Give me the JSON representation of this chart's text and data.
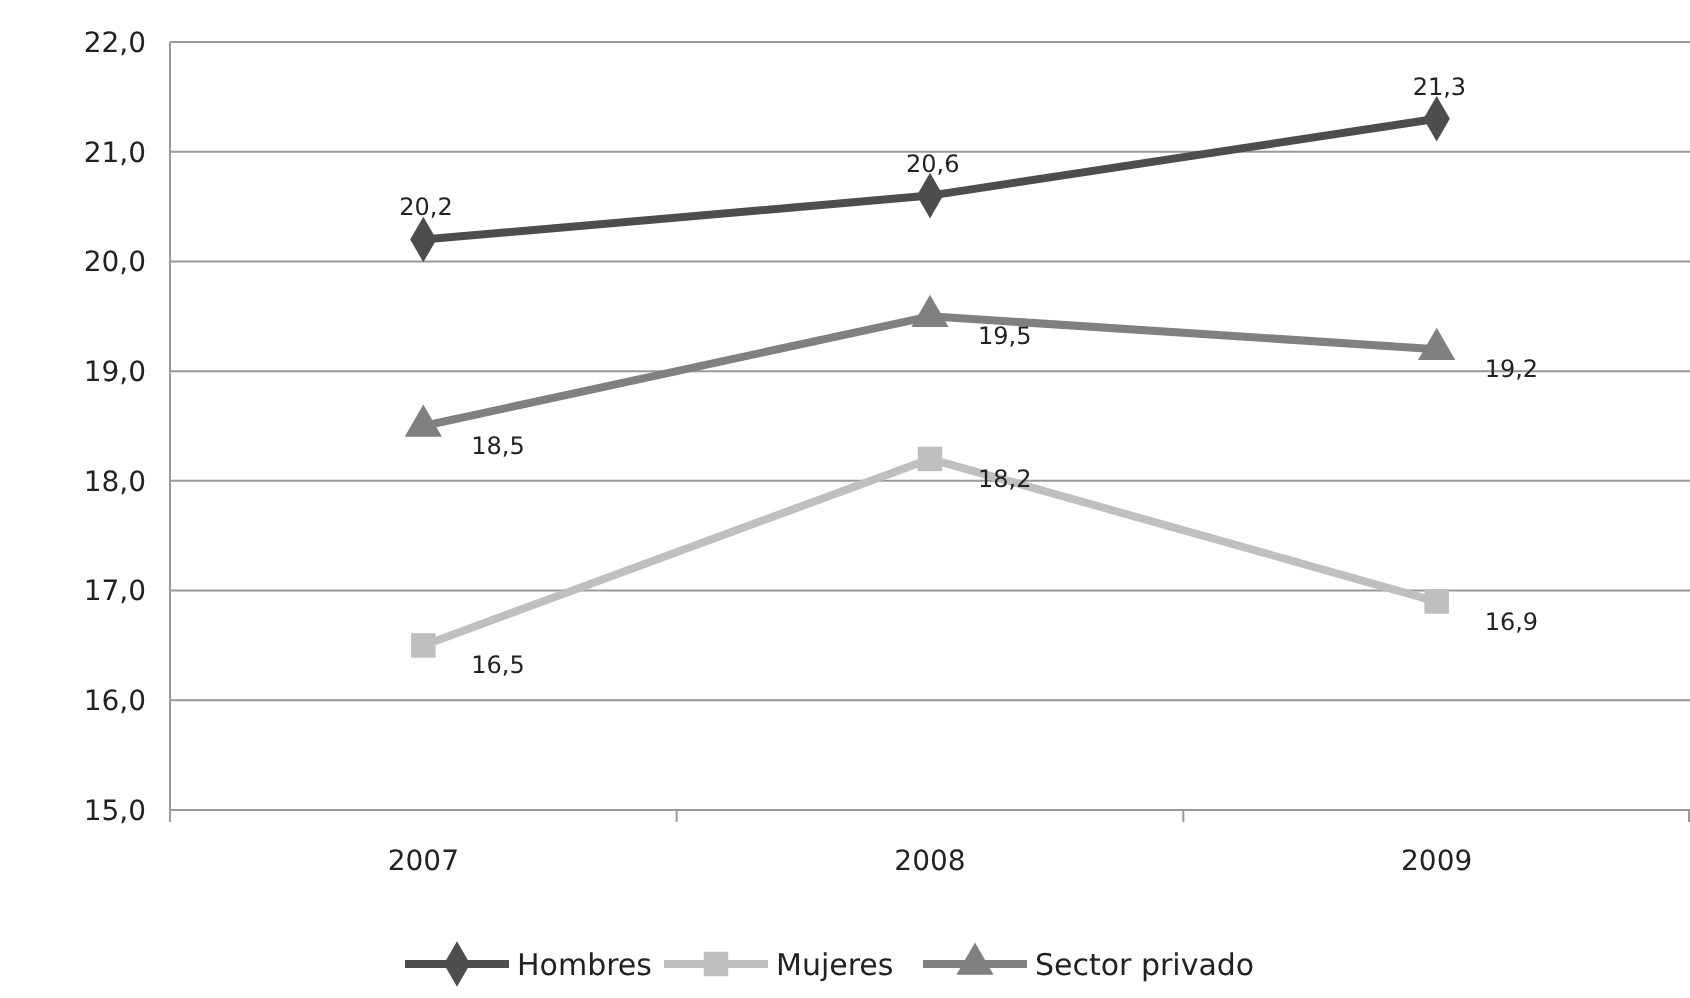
{
  "chart_data": {
    "type": "line",
    "categories": [
      "2007",
      "2008",
      "2009"
    ],
    "series": [
      {
        "name": "Hombres",
        "color": "#4d4d4d",
        "values": [
          20.2,
          20.6,
          21.3
        ],
        "value_labels": [
          "20,2",
          "20,6",
          "21,3"
        ],
        "marker": "diamond"
      },
      {
        "name": "Mujeres",
        "color": "#bfbfbf",
        "values": [
          16.5,
          18.2,
          16.9
        ],
        "value_labels": [
          "16,5",
          "18,2",
          "16,9"
        ],
        "marker": "square"
      },
      {
        "name": "Sector privado",
        "color": "#808080",
        "values": [
          18.5,
          19.5,
          19.2
        ],
        "value_labels": [
          "18,5",
          "19,5",
          "19,2"
        ],
        "marker": "triangle"
      }
    ],
    "ylim": [
      15,
      22
    ],
    "yticks": [
      {
        "value": 15,
        "label": "15,0"
      },
      {
        "value": 16,
        "label": "16,0"
      },
      {
        "value": 17,
        "label": "17,0"
      },
      {
        "value": 18,
        "label": "18,0"
      },
      {
        "value": 19,
        "label": "19,0"
      },
      {
        "value": 20,
        "label": "20,0"
      },
      {
        "value": 21,
        "label": "21,0"
      },
      {
        "value": 22,
        "label": "22,0"
      }
    ],
    "grid": "y",
    "legend": "bottom",
    "line_style": "solid"
  }
}
